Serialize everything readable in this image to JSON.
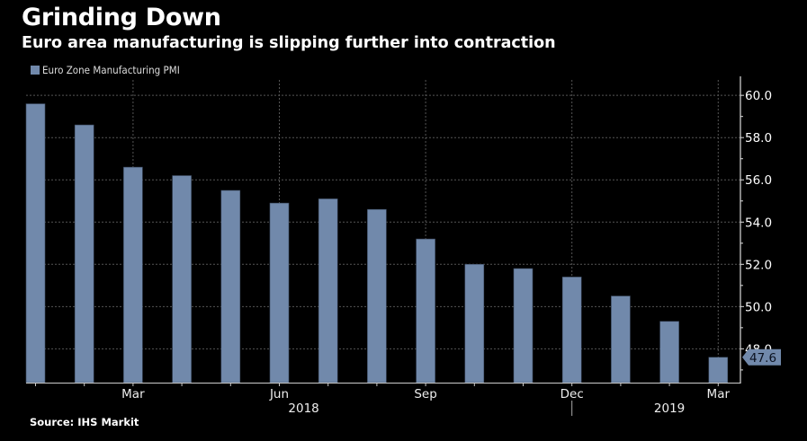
{
  "header": {
    "title": "Grinding Down",
    "subtitle": "Euro area manufacturing is slipping further into contraction"
  },
  "footer": {
    "source": "Source: IHS Markit"
  },
  "colors": {
    "bar": "#7189ab",
    "background": "#000000",
    "grid": "#555555",
    "axis": "#ffffff"
  },
  "chart_data": {
    "type": "bar",
    "title": "Grinding Down",
    "subtitle": "Euro area manufacturing is slipping further into contraction",
    "xlabel": "",
    "ylabel": "",
    "legend": {
      "position": "top-left",
      "entries": [
        "Euro Zone Manufacturing PMI"
      ]
    },
    "categories": [
      "Jan 2018",
      "Feb 2018",
      "Mar 2018",
      "Apr 2018",
      "May 2018",
      "Jun 2018",
      "Jul 2018",
      "Aug 2018",
      "Sep 2018",
      "Oct 2018",
      "Nov 2018",
      "Dec 2018",
      "Jan 2019",
      "Feb 2019",
      "Mar 2019"
    ],
    "series": [
      {
        "name": "Euro Zone Manufacturing PMI",
        "values": [
          59.6,
          58.6,
          56.6,
          56.2,
          55.5,
          54.9,
          55.1,
          54.6,
          53.2,
          52.0,
          51.8,
          51.4,
          50.5,
          49.3,
          47.6
        ]
      }
    ],
    "ylim": [
      46.4,
      60.9
    ],
    "y_ticks": [
      "48.0",
      "50.0",
      "52.0",
      "54.0",
      "56.0",
      "58.0",
      "60.0"
    ],
    "y_tick_values": [
      48,
      50,
      52,
      54,
      56,
      58,
      60
    ],
    "x_tick_labels": [
      {
        "label": "Mar",
        "index": 2
      },
      {
        "label": "Jun",
        "index": 5
      },
      {
        "label": "Sep",
        "index": 8
      },
      {
        "label": "Dec",
        "index": 11
      },
      {
        "label": "Mar",
        "index": 14
      }
    ],
    "year_labels": [
      {
        "label": "2018",
        "center_index": 5.5
      },
      {
        "label": "2019",
        "center_index": 13
      }
    ],
    "year_divider_index": 11,
    "last_value_label": "47.6",
    "y_axis_side": "right",
    "grid": true
  }
}
